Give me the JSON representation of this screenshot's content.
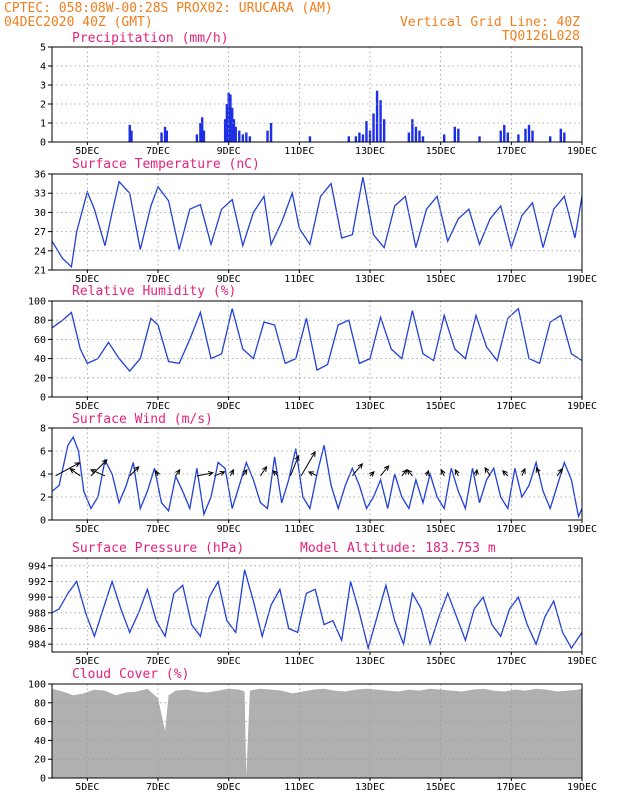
{
  "header": {
    "line1_left": "CPTEC:   058:08W-00:28S   PROX02: URUCARA (AM)",
    "line2_left": "04DEC2020 40Z (GMT)",
    "line2_right": "Vertical Grid Line: 40Z",
    "line3_right": "TQ0126L028"
  },
  "colors": {
    "header": "#f07f1e",
    "title": "#e6227a",
    "series": "#2140d8",
    "bars": "#1c2fe6",
    "cloud": "#b0b0b0"
  },
  "chart_data": [
    {
      "type": "bar",
      "title": "Precipitation (mm/h)",
      "x_ticks": [
        "5DEC",
        "7DEC",
        "9DEC",
        "11DEC",
        "13DEC",
        "15DEC",
        "17DEC",
        "19DEC"
      ],
      "ylim": [
        0,
        5
      ],
      "y_ticks": [
        0,
        1,
        2,
        3,
        4,
        5
      ],
      "grid": true,
      "x": [
        6.2,
        6.25,
        7.1,
        7.2,
        7.25,
        8.1,
        8.2,
        8.25,
        8.3,
        8.9,
        8.95,
        9.0,
        9.05,
        9.1,
        9.15,
        9.2,
        9.3,
        9.4,
        9.5,
        9.6,
        10.1,
        10.2,
        11.3,
        12.4,
        12.6,
        12.7,
        12.8,
        12.9,
        13.0,
        13.1,
        13.2,
        13.3,
        13.4,
        14.1,
        14.2,
        14.3,
        14.4,
        14.5,
        15.1,
        15.4,
        15.5,
        16.1,
        16.7,
        16.8,
        16.9,
        17.2,
        17.4,
        17.5,
        17.6,
        18.1,
        18.4,
        18.5
      ],
      "values": [
        0.9,
        0.6,
        0.5,
        0.8,
        0.6,
        0.4,
        1.0,
        1.3,
        0.6,
        1.2,
        2.0,
        2.6,
        2.5,
        1.8,
        1.2,
        0.8,
        0.6,
        0.4,
        0.5,
        0.3,
        0.6,
        1.0,
        0.3,
        0.3,
        0.3,
        0.5,
        0.4,
        1.1,
        0.6,
        1.5,
        2.7,
        2.2,
        1.2,
        0.5,
        1.2,
        0.8,
        0.6,
        0.3,
        0.4,
        0.8,
        0.7,
        0.3,
        0.6,
        0.9,
        0.5,
        0.4,
        0.7,
        0.9,
        0.6,
        0.3,
        0.7,
        0.5
      ]
    },
    {
      "type": "line",
      "title": "Surface Temperature (nC)",
      "x_ticks": [
        "5DEC",
        "7DEC",
        "9DEC",
        "11DEC",
        "13DEC",
        "15DEC",
        "17DEC",
        "19DEC"
      ],
      "ylim": [
        21,
        36
      ],
      "y_ticks": [
        21,
        24,
        27,
        30,
        33,
        36
      ],
      "grid": true,
      "x": [
        4.0,
        4.3,
        4.55,
        4.7,
        5.0,
        5.2,
        5.5,
        5.7,
        5.9,
        6.2,
        6.5,
        6.8,
        7.0,
        7.3,
        7.6,
        7.9,
        8.2,
        8.5,
        8.8,
        9.1,
        9.4,
        9.7,
        10.0,
        10.2,
        10.5,
        10.8,
        11.0,
        11.3,
        11.6,
        11.9,
        12.2,
        12.5,
        12.8,
        13.1,
        13.4,
        13.7,
        14.0,
        14.3,
        14.6,
        14.9,
        15.2,
        15.5,
        15.8,
        16.1,
        16.4,
        16.7,
        17.0,
        17.3,
        17.6,
        17.9,
        18.2,
        18.5,
        18.8,
        19.0
      ],
      "values": [
        25.5,
        22.8,
        21.5,
        27.0,
        33.2,
        30.5,
        24.8,
        30.0,
        34.8,
        33.0,
        24.2,
        31.0,
        34.0,
        31.8,
        24.2,
        30.5,
        31.2,
        25.0,
        30.5,
        32.0,
        24.8,
        30.0,
        32.5,
        25.0,
        28.5,
        33.0,
        27.5,
        25.0,
        32.5,
        34.5,
        26.0,
        26.5,
        35.5,
        26.5,
        24.5,
        31.0,
        32.5,
        24.5,
        30.5,
        32.5,
        25.5,
        29.0,
        30.5,
        25.0,
        29.0,
        31.0,
        24.5,
        29.5,
        31.5,
        24.5,
        30.5,
        32.5,
        26.0,
        32.5
      ]
    },
    {
      "type": "line",
      "title": "Relative Humidity (%)",
      "x_ticks": [
        "5DEC",
        "7DEC",
        "9DEC",
        "11DEC",
        "13DEC",
        "15DEC",
        "17DEC",
        "19DEC"
      ],
      "ylim": [
        0,
        100
      ],
      "y_ticks": [
        0,
        20,
        40,
        60,
        80,
        100
      ],
      "grid": true,
      "x": [
        4.0,
        4.3,
        4.55,
        4.8,
        5.0,
        5.3,
        5.6,
        5.9,
        6.2,
        6.5,
        6.8,
        7.0,
        7.3,
        7.6,
        7.9,
        8.2,
        8.5,
        8.8,
        9.1,
        9.4,
        9.7,
        10.0,
        10.3,
        10.6,
        10.9,
        11.2,
        11.5,
        11.8,
        12.1,
        12.4,
        12.7,
        13.0,
        13.3,
        13.6,
        13.9,
        14.2,
        14.5,
        14.8,
        15.1,
        15.4,
        15.7,
        16.0,
        16.3,
        16.6,
        16.9,
        17.2,
        17.5,
        17.8,
        18.1,
        18.4,
        18.7,
        19.0
      ],
      "values": [
        72,
        80,
        88,
        50,
        35,
        40,
        57,
        40,
        27,
        40,
        82,
        75,
        37,
        35,
        60,
        88,
        40,
        45,
        92,
        50,
        40,
        78,
        75,
        35,
        40,
        82,
        28,
        34,
        75,
        80,
        35,
        40,
        83,
        50,
        40,
        90,
        45,
        38,
        85,
        50,
        40,
        85,
        52,
        38,
        82,
        92,
        40,
        35,
        78,
        85,
        45,
        38
      ]
    },
    {
      "type": "line",
      "title": "Surface Wind (m/s)",
      "x_ticks": [
        "5DEC",
        "7DEC",
        "9DEC",
        "11DEC",
        "13DEC",
        "15DEC",
        "17DEC",
        "19DEC"
      ],
      "ylim": [
        0,
        8
      ],
      "y_ticks": [
        0,
        2,
        4,
        6,
        8
      ],
      "grid": true,
      "x": [
        4.0,
        4.2,
        4.45,
        4.6,
        4.75,
        4.9,
        5.1,
        5.3,
        5.5,
        5.7,
        5.9,
        6.1,
        6.3,
        6.5,
        6.7,
        6.9,
        7.1,
        7.3,
        7.5,
        7.7,
        7.9,
        8.1,
        8.3,
        8.5,
        8.7,
        8.9,
        9.1,
        9.3,
        9.5,
        9.7,
        9.9,
        10.1,
        10.3,
        10.5,
        10.7,
        10.9,
        11.1,
        11.3,
        11.5,
        11.7,
        11.9,
        12.1,
        12.3,
        12.5,
        12.7,
        12.9,
        13.1,
        13.3,
        13.5,
        13.7,
        13.9,
        14.1,
        14.3,
        14.5,
        14.7,
        14.9,
        15.1,
        15.3,
        15.5,
        15.7,
        15.9,
        16.1,
        16.3,
        16.5,
        16.7,
        16.9,
        17.1,
        17.3,
        17.5,
        17.7,
        17.9,
        18.1,
        18.3,
        18.5,
        18.7,
        18.9,
        19.0
      ],
      "values": [
        2.5,
        3.0,
        6.5,
        7.2,
        6.0,
        2.5,
        1.0,
        2.0,
        5.2,
        4.0,
        1.5,
        3.0,
        5.0,
        1.0,
        2.5,
        4.5,
        1.5,
        0.8,
        3.8,
        2.5,
        1.0,
        4.5,
        0.5,
        2.0,
        5.0,
        4.5,
        1.0,
        3.0,
        5.0,
        3.5,
        1.5,
        1.0,
        5.5,
        1.5,
        3.5,
        6.2,
        2.0,
        1.0,
        4.0,
        6.5,
        3.0,
        1.0,
        3.0,
        4.5,
        3.0,
        1.0,
        2.0,
        3.5,
        1.0,
        4.0,
        2.0,
        1.0,
        3.5,
        1.5,
        4.0,
        2.0,
        1.0,
        4.5,
        2.5,
        1.0,
        4.5,
        1.5,
        3.5,
        4.5,
        2.0,
        1.0,
        4.5,
        2.0,
        3.0,
        5.0,
        2.5,
        1.0,
        3.0,
        5.0,
        3.5,
        0.3,
        1.0
      ],
      "arrows": [
        {
          "x": 4.1,
          "dx": 24,
          "dy": -13
        },
        {
          "x": 4.8,
          "dx": -10,
          "dy": -7
        },
        {
          "x": 5.1,
          "dx": 16,
          "dy": -16
        },
        {
          "x": 5.5,
          "dx": -14,
          "dy": -6
        },
        {
          "x": 6.2,
          "dx": 9,
          "dy": -9
        },
        {
          "x": 7.0,
          "dx": -2,
          "dy": -5
        },
        {
          "x": 7.5,
          "dx": 4,
          "dy": -6
        },
        {
          "x": 8.1,
          "dx": 16,
          "dy": -3
        },
        {
          "x": 8.6,
          "dx": 10,
          "dy": -4
        },
        {
          "x": 9.05,
          "dx": 3,
          "dy": -6
        },
        {
          "x": 9.4,
          "dx": 4,
          "dy": -6
        },
        {
          "x": 9.9,
          "dx": 6,
          "dy": -9
        },
        {
          "x": 10.4,
          "dx": -5,
          "dy": -5
        },
        {
          "x": 10.75,
          "dx": 8,
          "dy": -20
        },
        {
          "x": 11.05,
          "dx": 14,
          "dy": -24
        },
        {
          "x": 11.5,
          "dx": -8,
          "dy": -4
        },
        {
          "x": 12.5,
          "dx": 10,
          "dy": -12
        },
        {
          "x": 13.0,
          "dx": 4,
          "dy": -4
        },
        {
          "x": 13.3,
          "dx": 8,
          "dy": -10
        },
        {
          "x": 13.9,
          "dx": 5,
          "dy": -6
        },
        {
          "x": 14.2,
          "dx": -5,
          "dy": -6
        },
        {
          "x": 14.6,
          "dx": 2,
          "dy": -5
        },
        {
          "x": 15.1,
          "dx": -3,
          "dy": -6
        },
        {
          "x": 15.5,
          "dx": -3,
          "dy": -6
        },
        {
          "x": 16.0,
          "dx": 1,
          "dy": -6
        },
        {
          "x": 16.4,
          "dx": -5,
          "dy": -8
        },
        {
          "x": 16.9,
          "dx": -5,
          "dy": -5
        },
        {
          "x": 17.3,
          "dx": 3,
          "dy": -7
        },
        {
          "x": 17.8,
          "dx": -3,
          "dy": -8
        },
        {
          "x": 18.3,
          "dx": 5,
          "dy": -7
        }
      ]
    },
    {
      "type": "line",
      "title": "Surface Pressure (hPa)",
      "annotation": "Model Altitude: 183.753 m",
      "x_ticks": [
        "5DEC",
        "7DEC",
        "9DEC",
        "11DEC",
        "13DEC",
        "15DEC",
        "17DEC",
        "19DEC"
      ],
      "ylim": [
        983,
        995
      ],
      "y_ticks": [
        984,
        986,
        988,
        990,
        992,
        994
      ],
      "grid": true,
      "x": [
        4.0,
        4.2,
        4.45,
        4.7,
        4.95,
        5.2,
        5.45,
        5.7,
        5.95,
        6.2,
        6.45,
        6.7,
        6.95,
        7.2,
        7.45,
        7.7,
        7.95,
        8.2,
        8.45,
        8.7,
        8.95,
        9.2,
        9.45,
        9.7,
        9.95,
        10.2,
        10.45,
        10.7,
        10.95,
        11.2,
        11.45,
        11.7,
        11.95,
        12.2,
        12.45,
        12.7,
        12.95,
        13.2,
        13.45,
        13.7,
        13.95,
        14.2,
        14.45,
        14.7,
        14.95,
        15.2,
        15.45,
        15.7,
        15.95,
        16.2,
        16.45,
        16.7,
        16.95,
        17.2,
        17.45,
        17.7,
        17.95,
        18.2,
        18.45,
        18.7,
        19.0
      ],
      "values": [
        988.0,
        988.5,
        990.5,
        992.0,
        988.0,
        985.0,
        988.5,
        992.0,
        988.5,
        985.5,
        988.0,
        991.0,
        987.0,
        985.0,
        990.5,
        991.5,
        986.5,
        985.0,
        990.0,
        992.0,
        987.0,
        985.5,
        993.5,
        989.5,
        985.0,
        989.0,
        991.0,
        986.0,
        985.5,
        990.5,
        991.0,
        986.5,
        987.0,
        984.5,
        992.0,
        988.0,
        983.5,
        987.5,
        991.5,
        987.0,
        984.0,
        990.5,
        988.5,
        984.0,
        987.5,
        990.5,
        987.5,
        984.5,
        988.5,
        990.0,
        986.5,
        985.0,
        988.5,
        990.0,
        986.5,
        984.0,
        987.5,
        989.5,
        985.5,
        983.5,
        985.5
      ]
    },
    {
      "type": "area",
      "title": "Cloud Cover (%)",
      "x_ticks": [
        "5DEC",
        "7DEC",
        "9DEC",
        "11DEC",
        "13DEC",
        "15DEC",
        "17DEC",
        "19DEC"
      ],
      "ylim": [
        0,
        100
      ],
      "y_ticks": [
        0,
        20,
        40,
        60,
        80,
        100
      ],
      "grid": true,
      "x": [
        4.0,
        4.3,
        4.6,
        4.9,
        5.2,
        5.5,
        5.8,
        6.1,
        6.4,
        6.7,
        7.0,
        7.2,
        7.3,
        7.5,
        7.8,
        8.1,
        8.4,
        8.7,
        9.0,
        9.3,
        9.45,
        9.5,
        9.6,
        9.9,
        10.2,
        10.5,
        10.8,
        11.1,
        11.4,
        11.7,
        12.0,
        12.3,
        12.6,
        12.9,
        13.2,
        13.5,
        13.8,
        14.1,
        14.4,
        14.7,
        15.0,
        15.3,
        15.6,
        15.9,
        16.2,
        16.5,
        16.8,
        17.1,
        17.4,
        17.7,
        18.0,
        18.3,
        18.6,
        18.9,
        19.0
      ],
      "values": [
        95,
        92,
        88,
        90,
        94,
        93,
        88,
        91,
        92,
        95,
        85,
        50,
        88,
        93,
        94,
        92,
        91,
        93,
        95,
        94,
        92,
        2,
        93,
        95,
        94,
        93,
        90,
        92,
        94,
        95,
        93,
        92,
        94,
        95,
        94,
        93,
        92,
        94,
        93,
        95,
        94,
        93,
        92,
        94,
        95,
        93,
        92,
        94,
        93,
        95,
        94,
        92,
        93,
        94,
        95
      ]
    }
  ]
}
